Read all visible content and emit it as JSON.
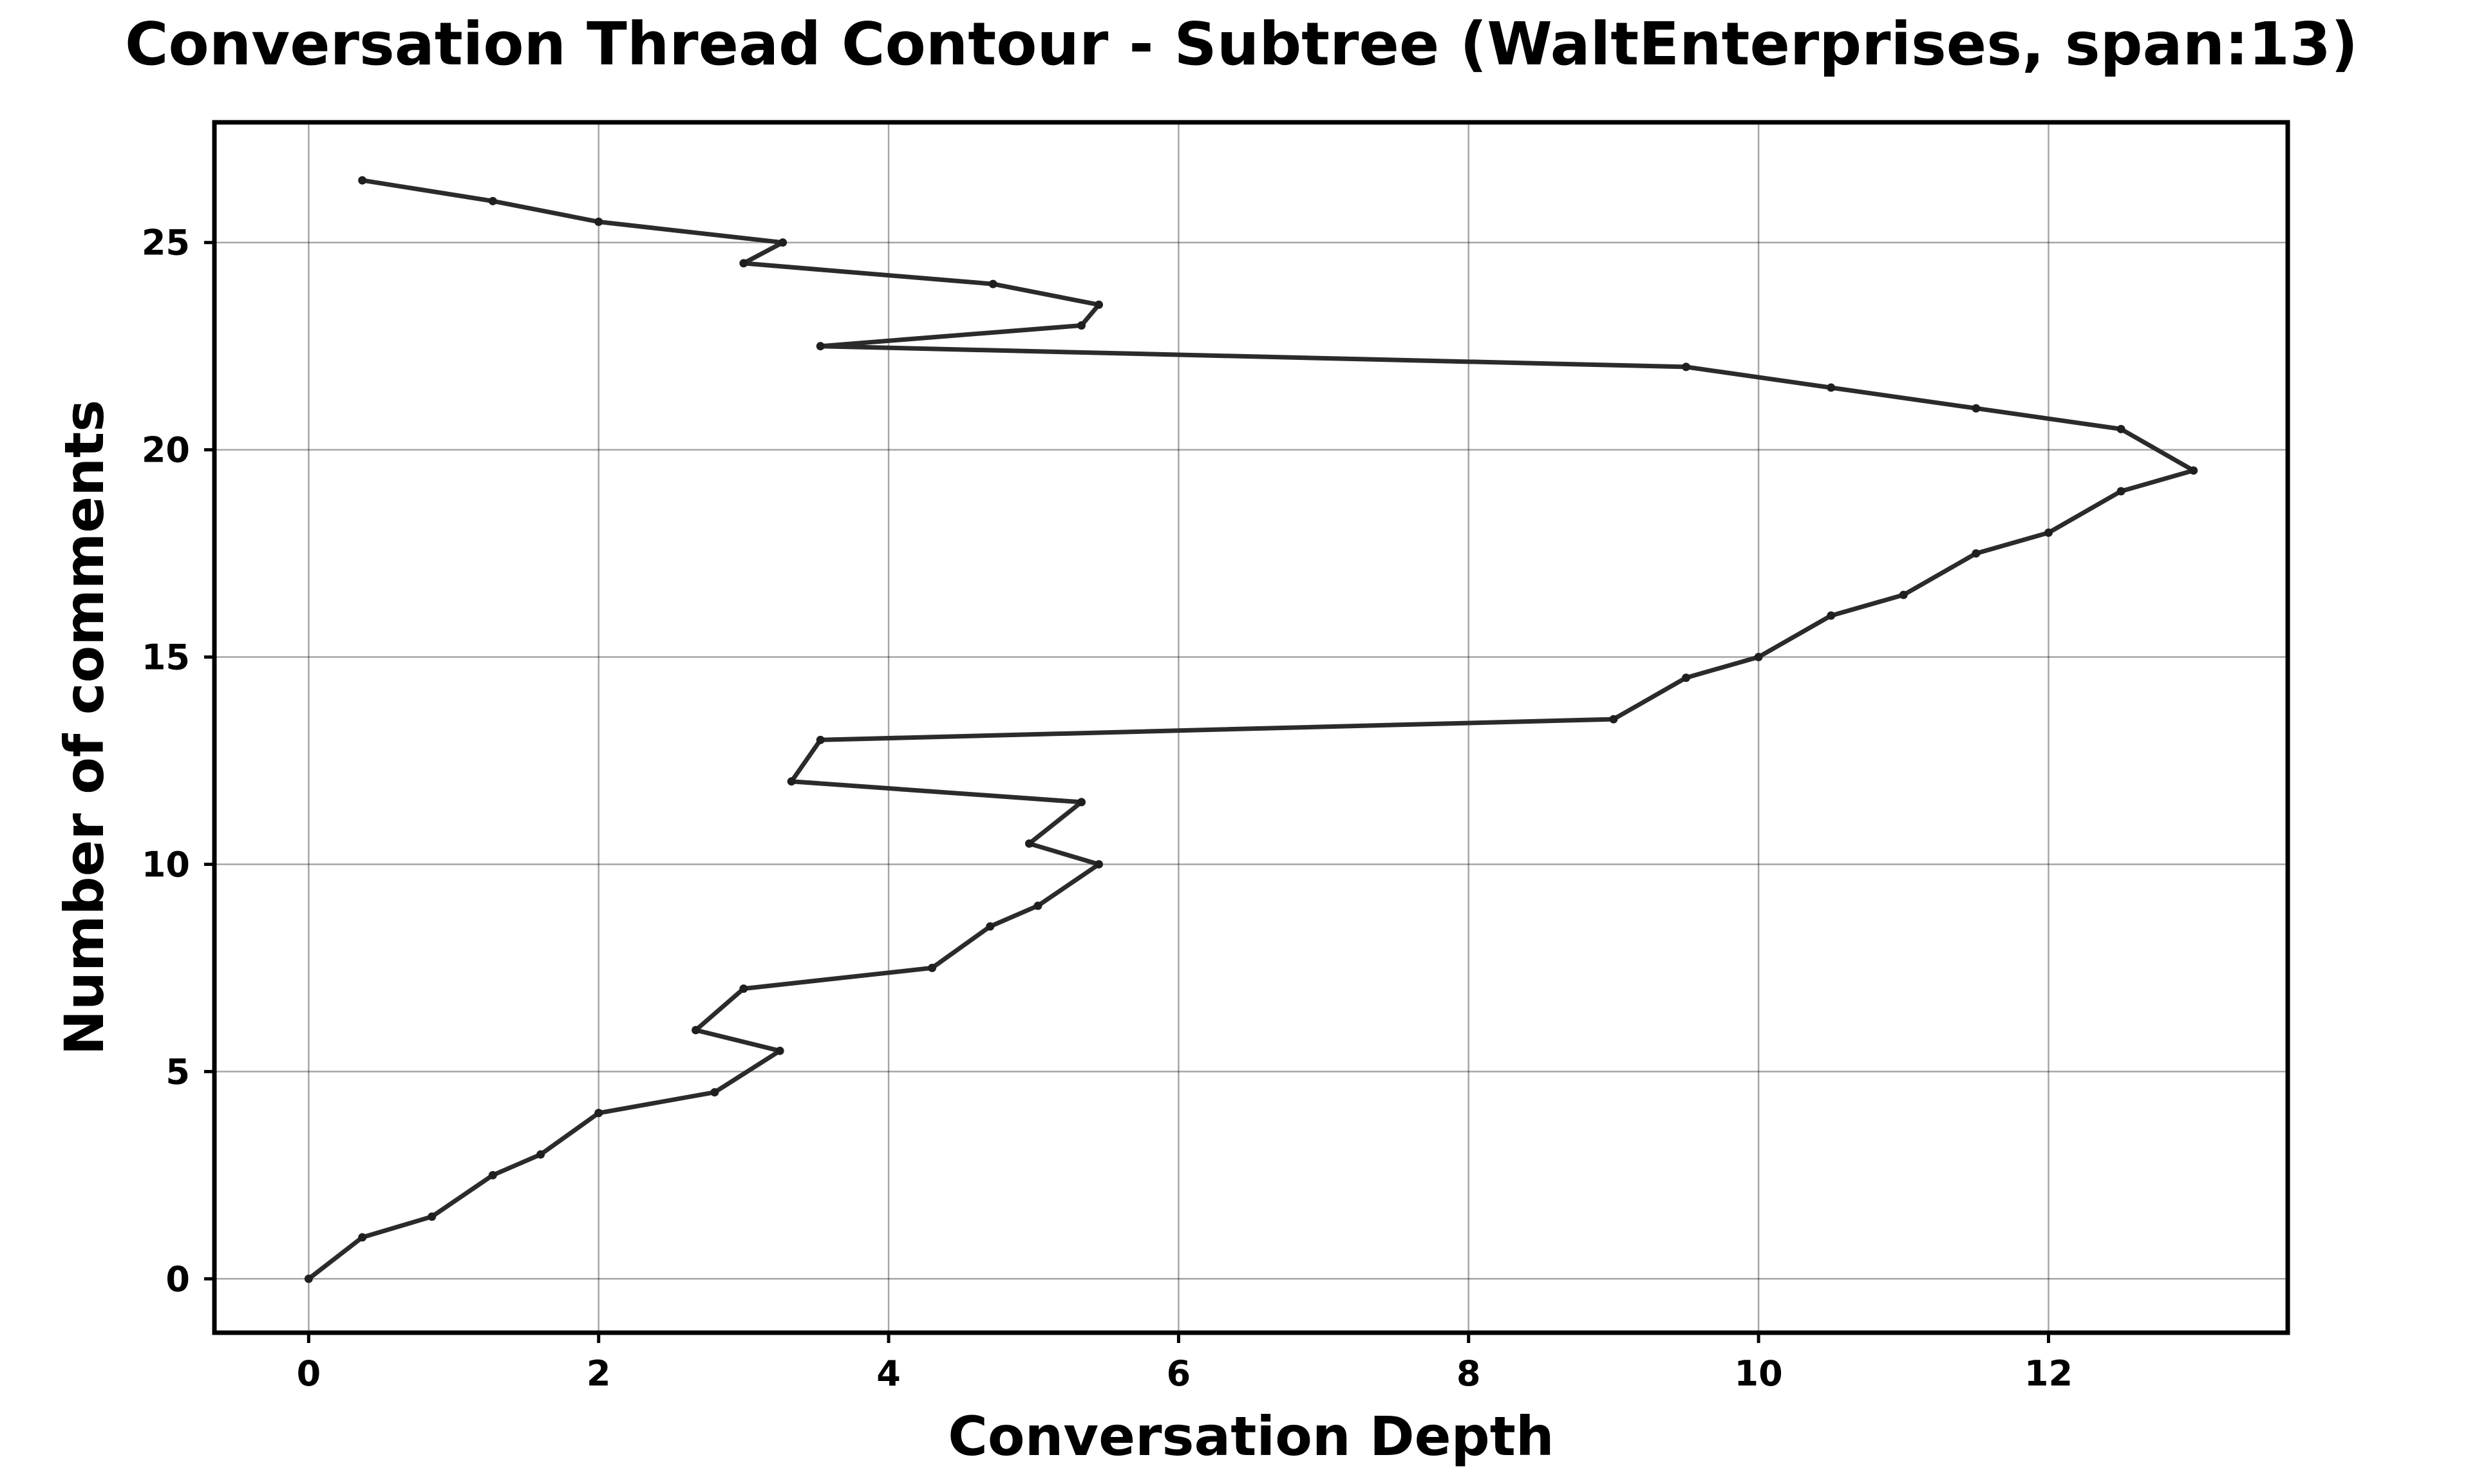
{
  "chart_data": {
    "type": "line",
    "title": "Conversation Thread Contour  - Subtree (WaltEnterprises, span:13)",
    "xlabel": "Conversation Depth",
    "ylabel": "Number of comments",
    "xlim": [
      -0.65,
      13.65
    ],
    "ylim": [
      -1.3,
      27.9
    ],
    "xticks": [
      0,
      2,
      4,
      6,
      8,
      10,
      12
    ],
    "yticks": [
      0,
      5,
      10,
      15,
      20,
      25
    ],
    "grid": true,
    "legend": "none",
    "line_color": "#2b2b2b",
    "series": [
      {
        "x": [
          0,
          0.37,
          0.85,
          1.27,
          1.6,
          2.0,
          2.8,
          3.25,
          2.67,
          3.0,
          4.3,
          4.7,
          5.03,
          5.45,
          4.97,
          5.33,
          3.33,
          3.53,
          9.0,
          9.5,
          10.0,
          10.5,
          11.0,
          11.5,
          12.0,
          12.5,
          13.0,
          12.5,
          11.5,
          10.5,
          9.5,
          3.53,
          5.33,
          5.45,
          4.72,
          3.0,
          3.27,
          2.0,
          1.27,
          0.37
        ],
        "y": [
          0,
          1,
          1.5,
          2.5,
          3,
          4,
          4.5,
          5.5,
          6,
          7,
          7.5,
          8.5,
          9,
          10,
          10.5,
          11.5,
          12,
          13,
          13.5,
          14.5,
          15,
          16,
          16.5,
          17.5,
          18,
          19,
          19.5,
          20.5,
          21,
          21.5,
          22,
          22.5,
          23,
          23.5,
          24,
          24.5,
          25,
          25.5,
          26,
          26.5
        ]
      }
    ]
  }
}
